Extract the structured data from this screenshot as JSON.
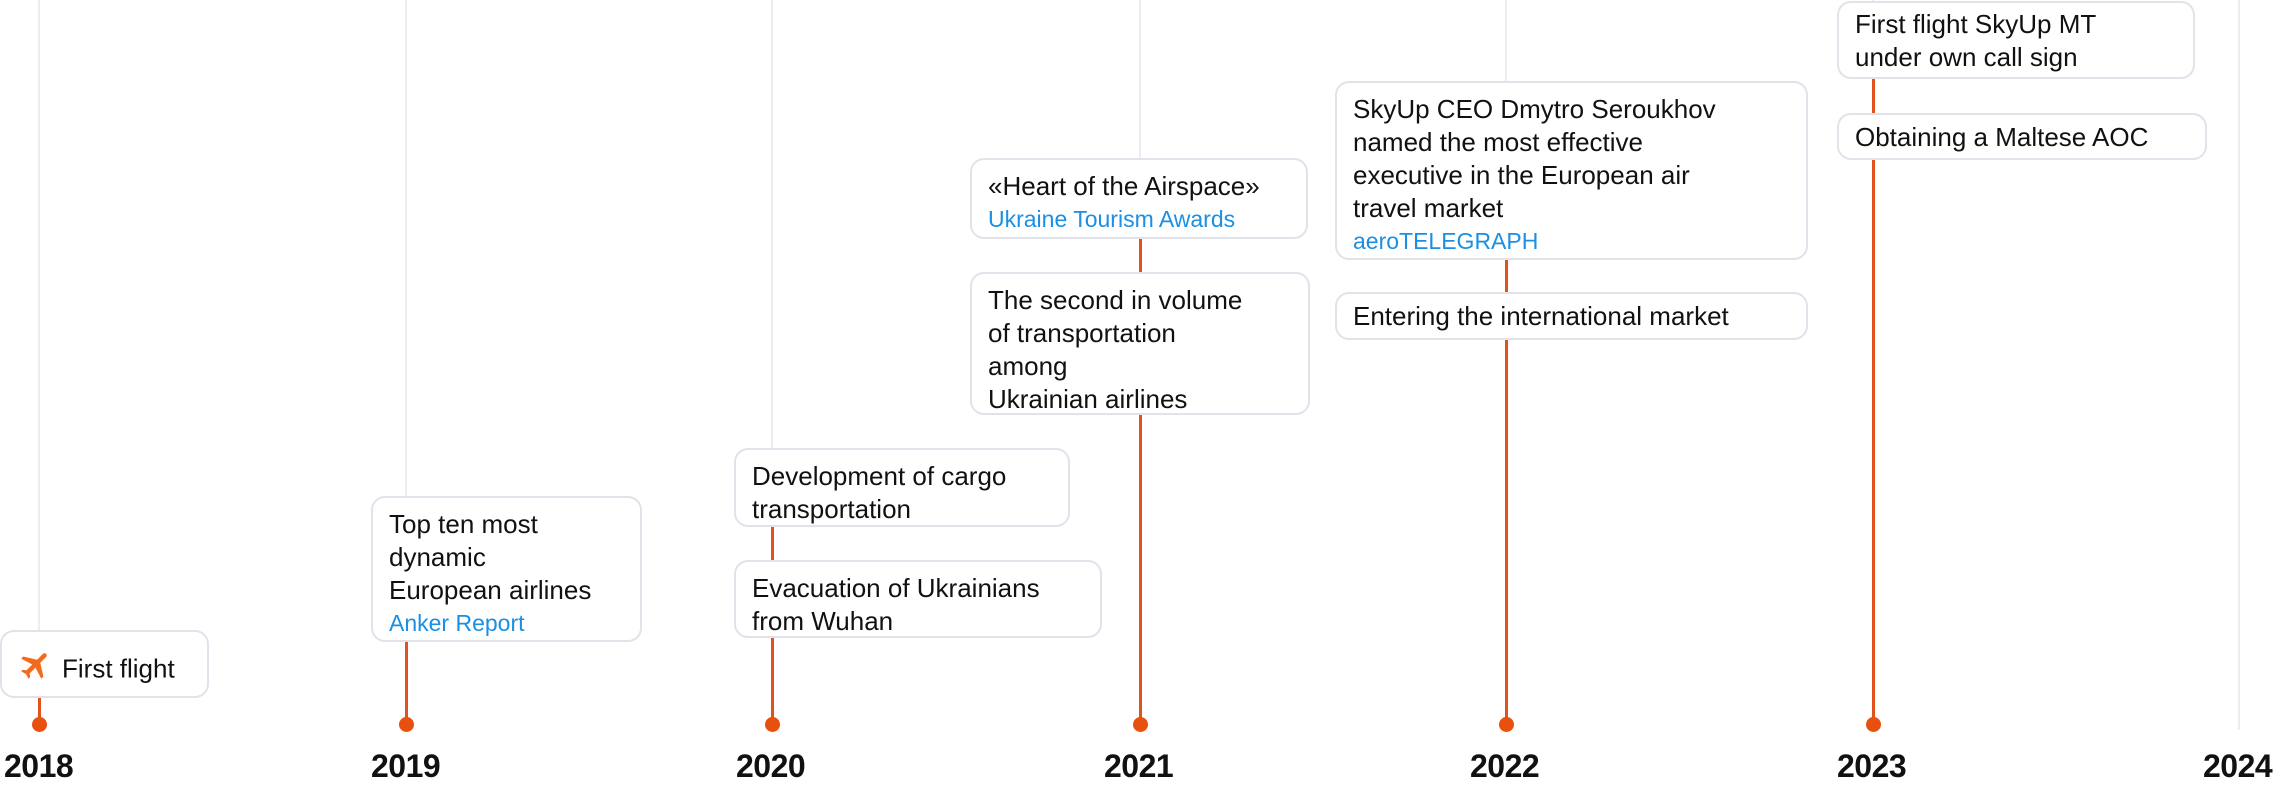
{
  "colors": {
    "accent": "#e8500f",
    "link": "#1a8fe3"
  },
  "years": [
    "2018",
    "2019",
    "2020",
    "2021",
    "2022",
    "2023",
    "2024"
  ],
  "events": {
    "y2018": [
      {
        "lines": [
          "First flight"
        ],
        "icon": "airplane-icon"
      }
    ],
    "y2019": [
      {
        "lines": [
          "Top ten most",
          "dynamic",
          "European airlines"
        ],
        "source": "Anker Report"
      }
    ],
    "y2020": [
      {
        "lines": [
          "Development of cargo",
          "transportation"
        ]
      },
      {
        "lines": [
          "Evacuation of Ukrainians",
          "from Wuhan"
        ]
      }
    ],
    "y2021": [
      {
        "lines": [
          "«Heart of the Airspace»"
        ],
        "source": "Ukraine Tourism Awards"
      },
      {
        "lines": [
          "The second in volume",
          "of transportation",
          "among",
          "Ukrainian airlines"
        ]
      }
    ],
    "y2022": [
      {
        "lines": [
          "SkyUp CEO Dmytro Seroukhov",
          "named the most effective",
          "executive in the European air",
          "travel market"
        ],
        "source": "aeroTELEGRAPH"
      },
      {
        "lines": [
          "Entering the international market"
        ]
      }
    ],
    "y2023": [
      {
        "lines": [
          "First flight SkyUp MT",
          "under own call sign"
        ]
      },
      {
        "lines": [
          "Obtaining a Maltese AOC"
        ]
      }
    ]
  }
}
